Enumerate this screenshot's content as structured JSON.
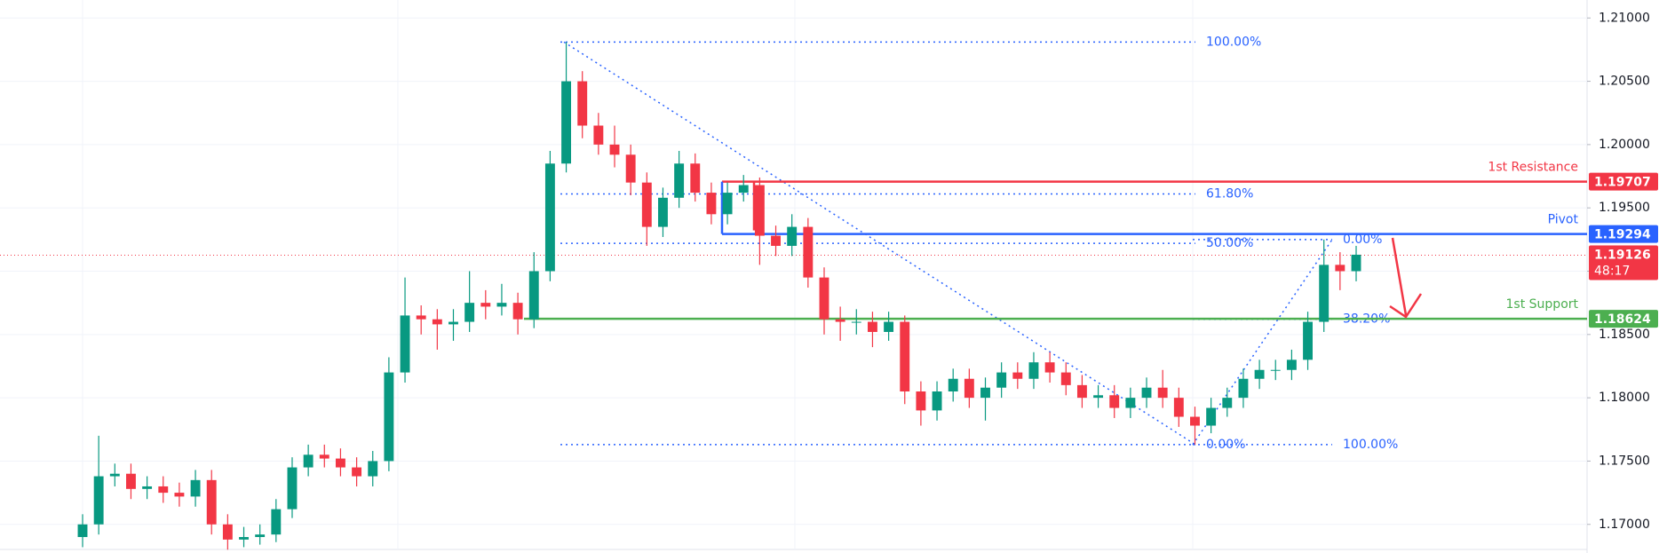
{
  "chart_data": {
    "type": "candlestick",
    "up_color": "#089981",
    "down_color": "#f23645",
    "open": [
      1.169,
      1.17,
      1.1738,
      1.174,
      1.1728,
      1.173,
      1.1725,
      1.1722,
      1.1735,
      1.17,
      1.1688,
      1.169,
      1.1692,
      1.1712,
      1.1745,
      1.1755,
      1.1752,
      1.1745,
      1.1738,
      1.175,
      1.182,
      1.1865,
      1.1862,
      1.1858,
      1.186,
      1.1875,
      1.1872,
      1.1875,
      1.1862,
      1.19,
      1.1985,
      1.205,
      1.2015,
      1.2,
      1.1992,
      1.197,
      1.1935,
      1.1958,
      1.1985,
      1.1962,
      1.1945,
      1.1962,
      1.1968,
      1.1928,
      1.192,
      1.1935,
      1.1895,
      1.1862,
      1.186,
      1.186,
      1.1852,
      1.186,
      1.1805,
      1.179,
      1.1805,
      1.1815,
      1.18,
      1.1808,
      1.182,
      1.1815,
      1.1828,
      1.182,
      1.181,
      1.18,
      1.1802,
      1.1792,
      1.18,
      1.1808,
      1.18,
      1.1785,
      1.1778,
      1.1792,
      1.18,
      1.1815,
      1.1822,
      1.1822,
      1.183,
      1.186,
      1.1905,
      1.19
    ],
    "high": [
      1.1708,
      1.177,
      1.1748,
      1.1748,
      1.1738,
      1.1738,
      1.1733,
      1.1743,
      1.1743,
      1.1708,
      1.1698,
      1.17,
      1.172,
      1.1753,
      1.1763,
      1.1763,
      1.176,
      1.1753,
      1.1758,
      1.1832,
      1.1895,
      1.1873,
      1.187,
      1.187,
      1.19,
      1.1885,
      1.189,
      1.1883,
      1.1915,
      1.1995,
      1.2081,
      1.2058,
      1.2025,
      1.2015,
      1.2,
      1.1978,
      1.1966,
      1.1995,
      1.1993,
      1.197,
      1.197,
      1.1976,
      1.1974,
      1.1936,
      1.1945,
      1.1942,
      1.1903,
      1.1872,
      1.187,
      1.1868,
      1.1868,
      1.1865,
      1.1813,
      1.1813,
      1.1823,
      1.1823,
      1.1816,
      1.1828,
      1.1828,
      1.1836,
      1.1836,
      1.1828,
      1.1818,
      1.181,
      1.181,
      1.1808,
      1.1816,
      1.1822,
      1.1808,
      1.1793,
      1.18,
      1.1808,
      1.1823,
      1.183,
      1.183,
      1.1838,
      1.1868,
      1.1925,
      1.1915,
      1.192
    ],
    "low": [
      1.1682,
      1.1692,
      1.173,
      1.172,
      1.172,
      1.1717,
      1.1714,
      1.1714,
      1.1692,
      1.168,
      1.1682,
      1.1684,
      1.1686,
      1.1705,
      1.1738,
      1.1745,
      1.1738,
      1.173,
      1.173,
      1.1742,
      1.1812,
      1.185,
      1.1838,
      1.1845,
      1.1852,
      1.1862,
      1.1865,
      1.185,
      1.1855,
      1.1892,
      1.1978,
      1.2005,
      1.1992,
      1.1982,
      1.196,
      1.192,
      1.1927,
      1.195,
      1.1955,
      1.1937,
      1.1937,
      1.1955,
      1.1905,
      1.1912,
      1.1912,
      1.1887,
      1.185,
      1.1845,
      1.185,
      1.184,
      1.1845,
      1.1795,
      1.1778,
      1.1782,
      1.1797,
      1.1792,
      1.1782,
      1.18,
      1.1807,
      1.1807,
      1.1812,
      1.1802,
      1.1792,
      1.1792,
      1.1784,
      1.1784,
      1.1792,
      1.1792,
      1.1777,
      1.1763,
      1.1772,
      1.1785,
      1.1792,
      1.1807,
      1.1814,
      1.1814,
      1.1822,
      1.1852,
      1.1885,
      1.1892
    ],
    "close": [
      1.17,
      1.1738,
      1.174,
      1.1728,
      1.173,
      1.1725,
      1.1722,
      1.1735,
      1.17,
      1.1688,
      1.169,
      1.1692,
      1.1712,
      1.1745,
      1.1755,
      1.1752,
      1.1745,
      1.1738,
      1.175,
      1.182,
      1.1865,
      1.1862,
      1.1858,
      1.186,
      1.1875,
      1.1872,
      1.1875,
      1.1862,
      1.19,
      1.1985,
      1.205,
      1.2015,
      1.2,
      1.1992,
      1.197,
      1.1935,
      1.1958,
      1.1985,
      1.1962,
      1.1945,
      1.1962,
      1.1968,
      1.1928,
      1.192,
      1.1935,
      1.1895,
      1.1862,
      1.186,
      1.186,
      1.1852,
      1.186,
      1.1805,
      1.179,
      1.1805,
      1.1815,
      1.18,
      1.1808,
      1.182,
      1.1815,
      1.1828,
      1.182,
      1.181,
      1.18,
      1.1802,
      1.1792,
      1.18,
      1.1808,
      1.18,
      1.1785,
      1.1778,
      1.1792,
      1.18,
      1.1815,
      1.1822,
      1.1822,
      1.183,
      1.186,
      1.1905,
      1.19,
      1.1913
    ],
    "ylim": [
      1.16816,
      1.21142
    ],
    "yticks": [
      {
        "value": 1.17,
        "label": "1.17000"
      },
      {
        "value": 1.175,
        "label": "1.17500"
      },
      {
        "value": 1.18,
        "label": "1.18000"
      },
      {
        "value": 1.185,
        "label": "1.18500"
      },
      {
        "value": 1.19,
        "label": "1.19000"
      },
      {
        "value": 1.195,
        "label": "1.19500"
      },
      {
        "value": 1.2,
        "label": "1.20000"
      },
      {
        "value": 1.205,
        "label": "1.20500"
      },
      {
        "value": 1.21,
        "label": "1.21000"
      }
    ],
    "grid": true,
    "levels": [
      {
        "name": "1st Resistance",
        "value": 1.19707,
        "color": "#f23645"
      },
      {
        "name": "Pivot",
        "value": 1.19294,
        "color": "#2962ff"
      },
      {
        "name": "1st Support",
        "value": 1.18624,
        "color": "#4caf50"
      }
    ],
    "current_price": {
      "value": 1.19126,
      "countdown": "48:17",
      "color": "#f23645"
    },
    "fibonacci": [
      {
        "levels": [
          {
            "value": 1.2081,
            "label": "100.00%"
          },
          {
            "value": 1.1961,
            "label": "61.80%"
          },
          {
            "value": 1.1922,
            "label": "50.00%"
          },
          {
            "value": 1.1763,
            "label": "0.00%"
          }
        ]
      },
      {
        "levels": [
          {
            "value": 1.1925,
            "label": "0.00%"
          },
          {
            "value": 1.1862,
            "label": "38.20%"
          },
          {
            "value": 1.1763,
            "label": "100.00%"
          }
        ]
      }
    ]
  }
}
